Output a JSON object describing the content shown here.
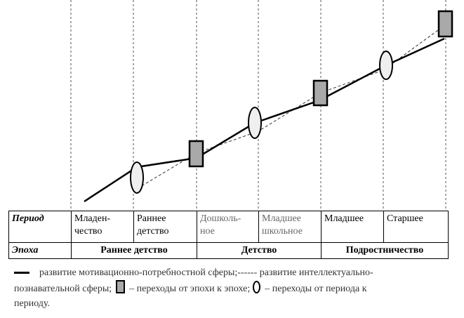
{
  "table": {
    "row1_header": "Период",
    "periods": [
      "Младен-\nчество",
      "Раннее\nдетство",
      "Дошколь-\nное",
      "Младшее\nшкольное",
      "Младшее",
      "Старшее"
    ],
    "row2_header": "Эпоха",
    "eras": [
      "Раннее детство",
      "Детство",
      "Подростничество"
    ]
  },
  "legend": {
    "solid_text": "развитие мотивационно-потребностной сферы;------ развитие интеллектуально-",
    "line2_a": "познавательной сферы;",
    "rect_text": "– переходы от эпохи к эпохе;",
    "oval_text": "–  переходы от периода к",
    "line3": "периоду."
  }
}
